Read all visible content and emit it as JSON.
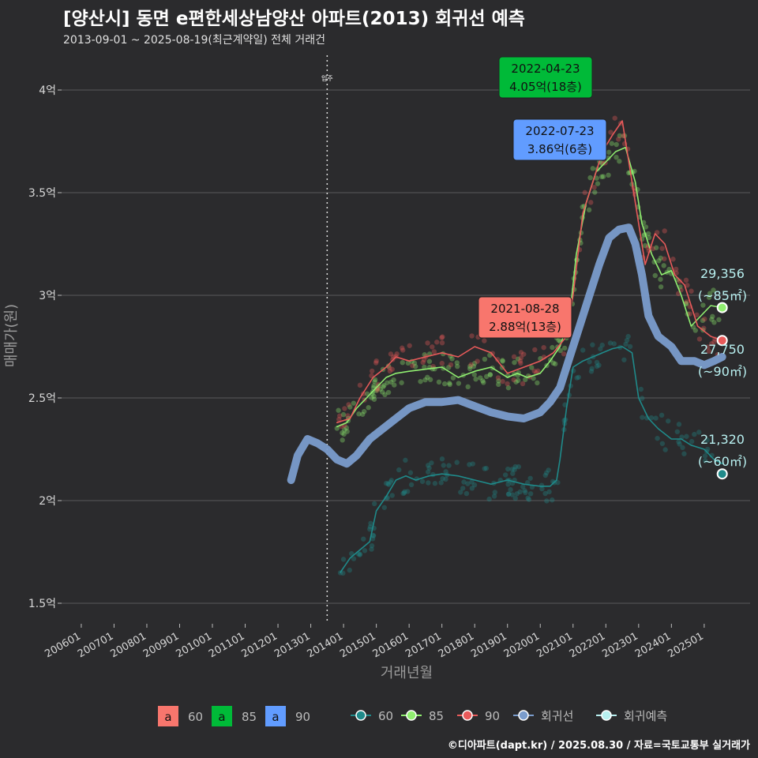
{
  "title": "[양산시] 동면 e편한세상남양산 아파트(2013) 회귀선 예측",
  "subtitle": "2013-09-01 ~ 2025-08-19(최근계약일) 전체 거래건",
  "footer": "©디아파트(dapt.kr) / 2025.08.30 / 자료=국토교통부 실거래가",
  "colors": {
    "bg": "#2b2b2d",
    "grid": "#5a5a5c",
    "s60": "#1f8a8a",
    "s85": "#90ee70",
    "s90": "#e85a5a",
    "reg": "#7a9ccc",
    "forecast": "#b8f0f0",
    "label60": "#f8766d",
    "label85": "#00ba38",
    "label90": "#619cff"
  },
  "chart_data": {
    "type": "line",
    "xlabel": "거래년월",
    "ylabel": "매매가(원)",
    "x_ticks": [
      "200601",
      "200701",
      "200801",
      "200901",
      "201001",
      "201101",
      "201201",
      "201301",
      "201401",
      "201501",
      "201601",
      "201701",
      "201801",
      "201901",
      "202001",
      "202101",
      "202201",
      "202301",
      "202401",
      "202501"
    ],
    "y_ticks": [
      {
        "value": 1.5,
        "label": "1.5억"
      },
      {
        "value": 2.0,
        "label": "2억"
      },
      {
        "value": 2.5,
        "label": "2.5억"
      },
      {
        "value": 3.0,
        "label": "3억"
      },
      {
        "value": 3.5,
        "label": "3.5억"
      },
      {
        "value": 4.0,
        "label": "4억"
      }
    ],
    "ylim": [
      1.4,
      4.2
    ],
    "event_line": {
      "x": 2013.5,
      "label": "입주"
    },
    "series": [
      {
        "name": "60",
        "values": [
          [
            2013.9,
            1.65
          ],
          [
            2014.2,
            1.72
          ],
          [
            2014.5,
            1.76
          ],
          [
            2014.8,
            1.8
          ],
          [
            2015.0,
            1.95
          ],
          [
            2015.3,
            2.02
          ],
          [
            2015.6,
            2.1
          ],
          [
            2015.9,
            2.12
          ],
          [
            2016.2,
            2.1
          ],
          [
            2016.6,
            2.12
          ],
          [
            2017.0,
            2.13
          ],
          [
            2017.5,
            2.12
          ],
          [
            2018.0,
            2.1
          ],
          [
            2018.5,
            2.08
          ],
          [
            2019.0,
            2.1
          ],
          [
            2019.5,
            2.08
          ],
          [
            2020.0,
            2.07
          ],
          [
            2020.3,
            2.07
          ],
          [
            2020.5,
            2.1
          ],
          [
            2020.6,
            2.2
          ],
          [
            2020.8,
            2.45
          ],
          [
            2021.0,
            2.65
          ],
          [
            2021.3,
            2.68
          ],
          [
            2021.6,
            2.7
          ],
          [
            2021.9,
            2.72
          ],
          [
            2022.2,
            2.74
          ],
          [
            2022.5,
            2.75
          ],
          [
            2022.8,
            2.72
          ],
          [
            2023.0,
            2.5
          ],
          [
            2023.3,
            2.4
          ],
          [
            2023.6,
            2.35
          ],
          [
            2024.0,
            2.3
          ],
          [
            2024.3,
            2.3
          ],
          [
            2024.6,
            2.27
          ],
          [
            2025.0,
            2.25
          ],
          [
            2025.3,
            2.2
          ],
          [
            2025.55,
            2.18
          ]
        ]
      },
      {
        "name": "85",
        "values": [
          [
            2013.8,
            2.36
          ],
          [
            2014.1,
            2.38
          ],
          [
            2014.4,
            2.45
          ],
          [
            2014.7,
            2.5
          ],
          [
            2015.0,
            2.55
          ],
          [
            2015.3,
            2.6
          ],
          [
            2015.6,
            2.62
          ],
          [
            2016.0,
            2.63
          ],
          [
            2016.5,
            2.64
          ],
          [
            2017.0,
            2.65
          ],
          [
            2017.5,
            2.6
          ],
          [
            2018.0,
            2.63
          ],
          [
            2018.5,
            2.65
          ],
          [
            2019.0,
            2.6
          ],
          [
            2019.3,
            2.62
          ],
          [
            2019.6,
            2.6
          ],
          [
            2020.0,
            2.62
          ],
          [
            2020.3,
            2.68
          ],
          [
            2020.6,
            2.75
          ],
          [
            2020.9,
            2.9
          ],
          [
            2021.1,
            3.2
          ],
          [
            2021.4,
            3.45
          ],
          [
            2021.7,
            3.6
          ],
          [
            2022.0,
            3.65
          ],
          [
            2022.3,
            3.7
          ],
          [
            2022.6,
            3.72
          ],
          [
            2022.9,
            3.55
          ],
          [
            2023.1,
            3.35
          ],
          [
            2023.4,
            3.2
          ],
          [
            2023.7,
            3.1
          ],
          [
            2024.0,
            3.12
          ],
          [
            2024.3,
            3.0
          ],
          [
            2024.6,
            2.85
          ],
          [
            2024.9,
            2.9
          ],
          [
            2025.2,
            2.95
          ],
          [
            2025.55,
            2.94
          ]
        ]
      },
      {
        "name": "90",
        "values": [
          [
            2013.8,
            2.38
          ],
          [
            2014.2,
            2.4
          ],
          [
            2014.5,
            2.5
          ],
          [
            2014.9,
            2.6
          ],
          [
            2015.3,
            2.65
          ],
          [
            2015.6,
            2.7
          ],
          [
            2016.0,
            2.68
          ],
          [
            2016.5,
            2.7
          ],
          [
            2017.0,
            2.72
          ],
          [
            2017.5,
            2.7
          ],
          [
            2018.0,
            2.75
          ],
          [
            2018.5,
            2.72
          ],
          [
            2019.0,
            2.62
          ],
          [
            2019.5,
            2.65
          ],
          [
            2020.0,
            2.68
          ],
          [
            2020.4,
            2.72
          ],
          [
            2020.8,
            2.8
          ],
          [
            2021.0,
            3.0
          ],
          [
            2021.3,
            3.4
          ],
          [
            2021.6,
            3.55
          ],
          [
            2021.9,
            3.7
          ],
          [
            2022.2,
            3.78
          ],
          [
            2022.5,
            3.85
          ],
          [
            2023.2,
            3.15
          ],
          [
            2023.5,
            3.3
          ],
          [
            2023.8,
            3.25
          ],
          [
            2024.1,
            3.1
          ],
          [
            2024.4,
            3.05
          ],
          [
            2024.8,
            2.85
          ],
          [
            2025.2,
            2.8
          ],
          [
            2025.55,
            2.78
          ]
        ]
      },
      {
        "name": "회귀선",
        "values": [
          [
            2012.4,
            2.1
          ],
          [
            2012.6,
            2.22
          ],
          [
            2012.9,
            2.3
          ],
          [
            2013.2,
            2.28
          ],
          [
            2013.5,
            2.25
          ],
          [
            2013.8,
            2.2
          ],
          [
            2014.1,
            2.18
          ],
          [
            2014.4,
            2.22
          ],
          [
            2014.8,
            2.3
          ],
          [
            2015.2,
            2.35
          ],
          [
            2015.6,
            2.4
          ],
          [
            2016.0,
            2.45
          ],
          [
            2016.5,
            2.48
          ],
          [
            2017.0,
            2.48
          ],
          [
            2017.5,
            2.49
          ],
          [
            2018.0,
            2.46
          ],
          [
            2018.5,
            2.43
          ],
          [
            2019.0,
            2.41
          ],
          [
            2019.5,
            2.4
          ],
          [
            2020.0,
            2.43
          ],
          [
            2020.3,
            2.48
          ],
          [
            2020.6,
            2.55
          ],
          [
            2020.9,
            2.7
          ],
          [
            2021.2,
            2.85
          ],
          [
            2021.5,
            3.0
          ],
          [
            2021.8,
            3.15
          ],
          [
            2022.1,
            3.28
          ],
          [
            2022.4,
            3.32
          ],
          [
            2022.7,
            3.33
          ],
          [
            2022.9,
            3.25
          ],
          [
            2023.1,
            3.1
          ],
          [
            2023.3,
            2.9
          ],
          [
            2023.6,
            2.8
          ],
          [
            2024.0,
            2.75
          ],
          [
            2024.3,
            2.68
          ],
          [
            2024.7,
            2.68
          ],
          [
            2025.0,
            2.66
          ],
          [
            2025.3,
            2.68
          ],
          [
            2025.55,
            2.7
          ]
        ]
      }
    ],
    "forecast_points": [
      {
        "series": "85",
        "value": 29356,
        "area": "(~85㎡)",
        "y": 2.94
      },
      {
        "series": "90",
        "value": 27750,
        "area": "(~90㎡)",
        "y": 2.78
      },
      {
        "series": "60",
        "value": 21320,
        "area": "(~60㎡)",
        "y": 2.13
      }
    ],
    "annotations": [
      {
        "date": "2022-04-23",
        "text": "4.05억(18층)",
        "series": "85",
        "y": 4.05,
        "x": 2022.3
      },
      {
        "date": "2022-07-23",
        "text": "3.86억(6층)",
        "series": "90",
        "y": 3.86,
        "x": 2022.55
      },
      {
        "date": "2021-08-28",
        "text": "2.88억(13층)",
        "series": "60",
        "y": 2.88,
        "x": 2021.65
      }
    ],
    "legend_fill": [
      {
        "key": "a",
        "label": "60",
        "color": "#f8766d"
      },
      {
        "key": "a",
        "label": "85",
        "color": "#00ba38"
      },
      {
        "key": "a",
        "label": "90",
        "color": "#619cff"
      }
    ],
    "legend_line": [
      {
        "label": "60",
        "color": "#1f8a8a"
      },
      {
        "label": "85",
        "color": "#90ee70"
      },
      {
        "label": "90",
        "color": "#e85a5a"
      },
      {
        "label": "회귀선",
        "color": "#7a9ccc"
      },
      {
        "label": "회귀예측",
        "color": "#b8f0f0"
      }
    ]
  }
}
